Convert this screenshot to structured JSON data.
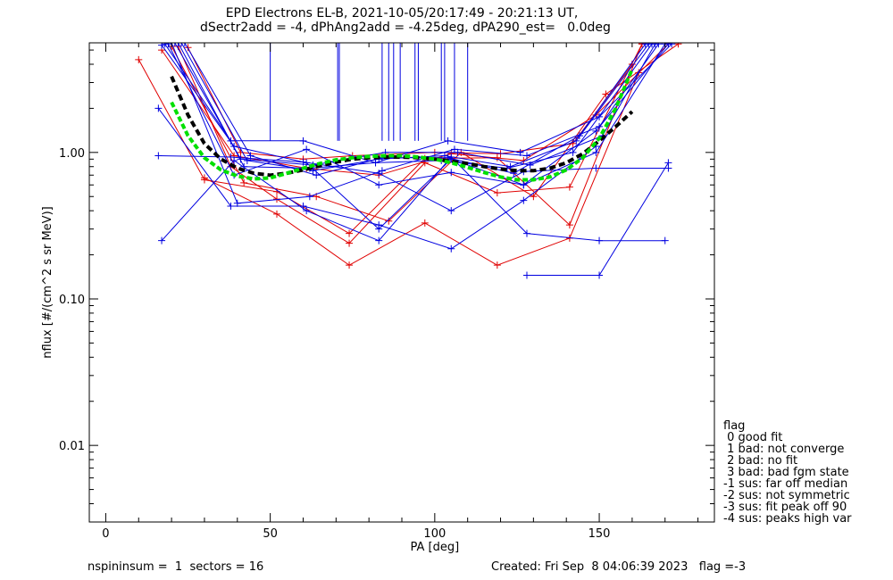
{
  "title_line1": "EPD Electrons EL-B, 2021-10-05/20:17:49 - 20:21:13 UT,",
  "title_line2": "dSectr2add = -4, dPhAng2add = -4.25deg, dPA290_est=   0.0deg",
  "footer_left": "nspininsum =  1  sectors = 16",
  "footer_right": "Created: Fri Sep  8 04:06:39 2023   flag =-3",
  "legend": {
    "title": "flag",
    "items": [
      " 0 good fit",
      " 1 bad: not converge",
      " 2 bad: no fit",
      " 3 bad: bad fgm state",
      "-1 sus: far off median",
      "-2 sus: not symmetric",
      "-3 sus: fit peak off 90",
      "-4 sus: peaks high var"
    ]
  },
  "colors": {
    "red": "#e00000",
    "blue": "#0000e0",
    "black": "#000000",
    "green": "#00e000"
  },
  "chart_data": {
    "type": "line",
    "xlabel": "PA [deg]",
    "ylabel": "nflux [#/(cm^2 s sr MeV)]",
    "xlim": [
      -5,
      185
    ],
    "ylim": [
      0.003,
      5.6
    ],
    "yscale": "log",
    "xticks": [
      0,
      50,
      100,
      150
    ],
    "xtick_labels": [
      "0",
      "50",
      "100",
      "150"
    ],
    "yticks": [
      0.01,
      0.1,
      1.0
    ],
    "ytick_labels": [
      "0.01",
      "0.10",
      "1.00"
    ],
    "vlines_x": [
      50,
      70.5,
      71,
      84,
      86,
      87.5,
      89.5,
      94,
      95,
      102,
      103,
      106,
      110
    ],
    "series": [
      {
        "color": "red",
        "x": [
          10,
          30,
          52,
          74,
          97,
          119,
          141,
          163
        ],
        "y": [
          4.3,
          0.65,
          0.54,
          0.28,
          0.91,
          0.92,
          0.32,
          5.5
        ]
      },
      {
        "color": "red",
        "x": [
          17,
          39,
          61,
          83,
          105,
          127,
          149,
          171
        ],
        "y": [
          5.0,
          0.95,
          0.78,
          0.7,
          0.98,
          0.88,
          1.8,
          5.5
        ]
      },
      {
        "color": "red",
        "x": [
          20,
          42,
          64,
          86,
          108,
          130,
          152,
          174
        ],
        "y": [
          5.3,
          0.62,
          0.5,
          0.34,
          1.0,
          0.5,
          2.5,
          5.5
        ]
      },
      {
        "color": "red",
        "x": [
          30,
          52,
          74,
          97,
          119,
          141,
          162
        ],
        "y": [
          0.67,
          0.38,
          0.17,
          0.33,
          0.17,
          0.26,
          3.5
        ]
      },
      {
        "color": "red",
        "x": [
          22,
          38,
          52,
          74,
          97,
          119,
          141,
          163
        ],
        "y": [
          5.3,
          0.8,
          0.48,
          0.24,
          0.85,
          0.53,
          0.58,
          5.5
        ]
      },
      {
        "color": "red",
        "x": [
          25,
          41,
          60,
          75,
          100,
          120,
          142,
          160
        ],
        "y": [
          5.2,
          1.0,
          0.9,
          0.95,
          1.0,
          0.98,
          1.15,
          4.0
        ]
      },
      {
        "color": "blue",
        "x": [
          16,
          38,
          60,
          83,
          105,
          127,
          149,
          171
        ],
        "y": [
          0.95,
          0.93,
          0.86,
          0.72,
          0.4,
          0.74,
          0.78,
          0.78
        ]
      },
      {
        "color": "blue",
        "x": [
          17,
          39,
          61,
          83,
          105,
          128,
          150,
          170
        ],
        "y": [
          0.25,
          0.88,
          0.4,
          0.25,
          0.93,
          0.28,
          0.25,
          0.25
        ]
      },
      {
        "color": "blue",
        "x": [
          16,
          38,
          60,
          83,
          105,
          127,
          149
        ],
        "y": [
          2.0,
          0.43,
          0.43,
          0.32,
          0.22,
          0.47,
          1.1
        ]
      },
      {
        "color": "blue",
        "x": [
          17,
          39,
          61,
          83,
          105,
          127,
          149,
          171
        ],
        "y": [
          5.4,
          1.1,
          0.85,
          0.3,
          0.9,
          0.6,
          1.4,
          5.5
        ]
      },
      {
        "color": "blue",
        "x": [
          18,
          38,
          60,
          82,
          104,
          126,
          150,
          172
        ],
        "y": [
          5.5,
          1.2,
          1.2,
          0.85,
          1.2,
          1.0,
          1.75,
          5.5
        ]
      },
      {
        "color": "blue",
        "x": [
          19,
          39,
          61,
          83,
          105,
          127,
          149,
          170
        ],
        "y": [
          5.5,
          0.7,
          1.05,
          0.6,
          0.73,
          0.6,
          1.0,
          5.5
        ]
      },
      {
        "color": "blue",
        "x": [
          20,
          40,
          62,
          84,
          106,
          128,
          150,
          168
        ],
        "y": [
          5.6,
          0.45,
          0.5,
          0.75,
          1.05,
          0.95,
          1.5,
          5.5
        ]
      },
      {
        "color": "blue",
        "x": [
          21,
          41,
          63,
          85,
          107,
          129,
          151,
          167
        ],
        "y": [
          5.6,
          0.9,
          0.82,
          1.0,
          1.0,
          0.82,
          1.3,
          5.5
        ]
      },
      {
        "color": "blue",
        "x": [
          128,
          150,
          171
        ],
        "y": [
          0.145,
          0.145,
          0.85
        ]
      },
      {
        "color": "blue",
        "x": [
          23,
          43,
          63,
          83,
          103,
          123,
          143,
          165
        ],
        "y": [
          5.6,
          0.88,
          0.75,
          0.9,
          0.95,
          0.8,
          1.2,
          5.5
        ]
      },
      {
        "color": "blue",
        "x": [
          22,
          42,
          62,
          82,
          102,
          122,
          142,
          166
        ],
        "y": [
          5.6,
          0.8,
          0.78,
          0.85,
          0.88,
          0.78,
          1.0,
          5.5
        ]
      },
      {
        "color": "blue",
        "x": [
          24,
          44,
          64,
          84,
          104,
          124,
          144,
          164
        ],
        "y": [
          5.6,
          0.95,
          0.7,
          0.92,
          0.92,
          0.72,
          1.3,
          5.5
        ]
      }
    ],
    "fit_black": {
      "x": [
        20,
        25,
        30,
        35,
        40,
        45,
        50,
        55,
        60,
        65,
        70,
        75,
        80,
        85,
        90,
        95,
        100,
        105,
        110,
        115,
        120,
        125,
        130,
        135,
        140,
        145,
        150,
        155,
        160
      ],
      "y": [
        3.3,
        1.8,
        1.15,
        0.9,
        0.78,
        0.72,
        0.7,
        0.72,
        0.76,
        0.81,
        0.86,
        0.9,
        0.92,
        0.93,
        0.93,
        0.92,
        0.9,
        0.87,
        0.84,
        0.8,
        0.77,
        0.75,
        0.75,
        0.78,
        0.85,
        0.98,
        1.2,
        1.5,
        1.9
      ]
    },
    "fit_green": {
      "x": [
        20,
        25,
        30,
        35,
        40,
        45,
        50,
        55,
        60,
        65,
        70,
        75,
        80,
        85,
        90,
        95,
        100,
        105,
        110,
        115,
        120,
        125,
        130,
        135,
        140,
        145,
        150,
        155,
        160
      ],
      "y": [
        2.2,
        1.3,
        0.92,
        0.76,
        0.69,
        0.66,
        0.67,
        0.72,
        0.78,
        0.84,
        0.89,
        0.92,
        0.94,
        0.95,
        0.95,
        0.93,
        0.9,
        0.85,
        0.79,
        0.73,
        0.68,
        0.65,
        0.65,
        0.68,
        0.76,
        0.92,
        1.25,
        2.0,
        3.7
      ]
    }
  }
}
